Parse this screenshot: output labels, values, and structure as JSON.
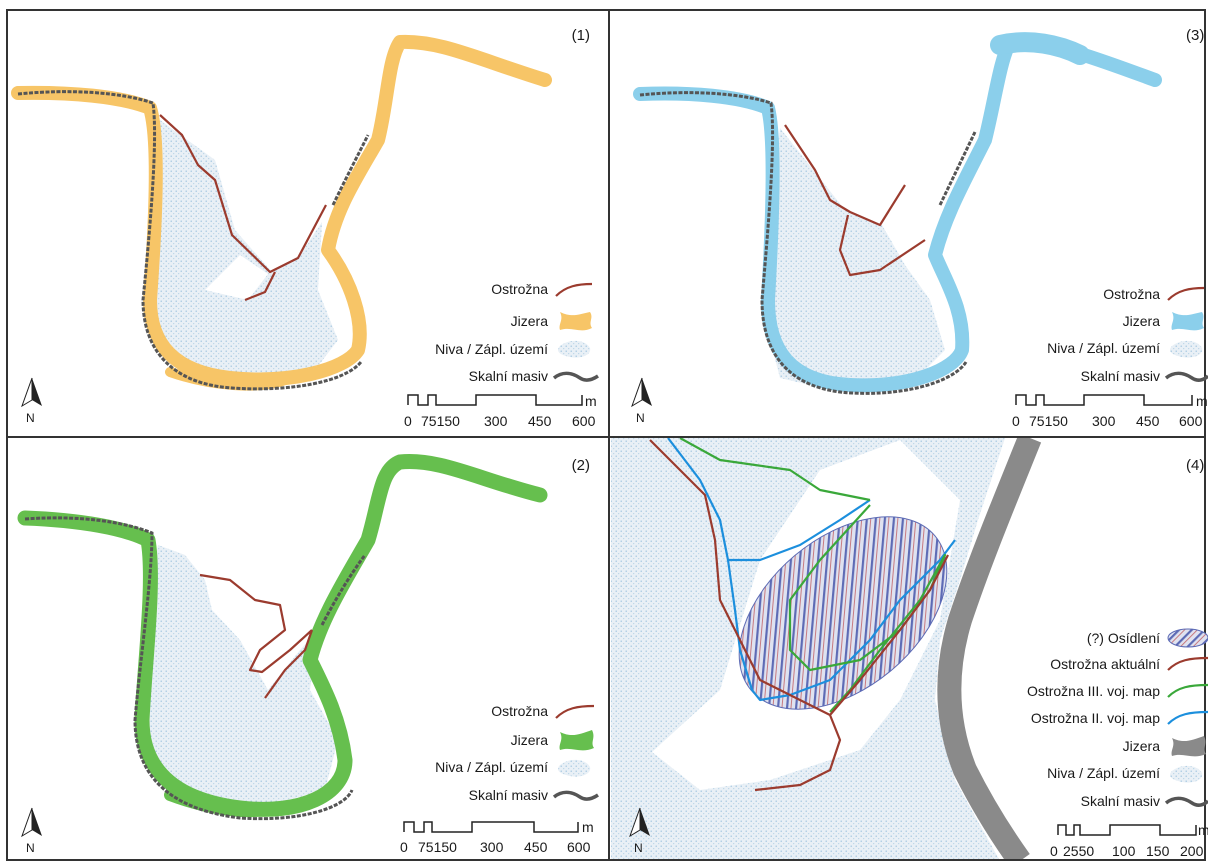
{
  "colors": {
    "ostrozna": "#9b3b2e",
    "jizera_1": "#f7c567",
    "jizera_2": "#66bf4e",
    "jizera_3": "#8bcfeb",
    "jizera_4": "#8a8a8a",
    "niva_fill": "#e6eef5",
    "niva_dots": "#9dc3de",
    "skalni": "#555555",
    "osidleni_hatch": "#5d6bb5",
    "ostrozna_iii": "#3aa83a",
    "ostrozna_ii": "#1c8fdd",
    "frame": "#333333"
  },
  "icons": {
    "north_arrow": "north-arrow-icon",
    "north_label": "N"
  },
  "panels": [
    {
      "label": "(1)",
      "legend": [
        "Ostrožna",
        "Jizera",
        "Niva / Zápl. území",
        "Skalní masiv"
      ],
      "scale": {
        "ticks": [
          "0",
          "75150",
          "300",
          "450",
          "600"
        ],
        "unit": "m"
      }
    },
    {
      "label": "(2)",
      "legend": [
        "Ostrožna",
        "Jizera",
        "Niva / Zápl. území",
        "Skalní masiv"
      ],
      "scale": {
        "ticks": [
          "0",
          "75150",
          "300",
          "450",
          "600"
        ],
        "unit": "m"
      }
    },
    {
      "label": "(3)",
      "legend": [
        "Ostrožna",
        "Jizera",
        "Niva / Zápl. území",
        "Skalní masiv"
      ],
      "scale": {
        "ticks": [
          "0",
          "75150",
          "300",
          "450",
          "600"
        ],
        "unit": "m"
      }
    },
    {
      "label": "(4)",
      "legend": [
        "(?) Osídlení",
        "Ostrožna aktuální",
        "Ostrožna III. voj. map",
        "Ostrožna II. voj. map",
        "Jizera",
        "Niva / Zápl. území",
        "Skalní masiv"
      ],
      "scale": {
        "ticks": [
          "0",
          "2550",
          "100",
          "150",
          "200"
        ],
        "unit": "m"
      }
    }
  ]
}
